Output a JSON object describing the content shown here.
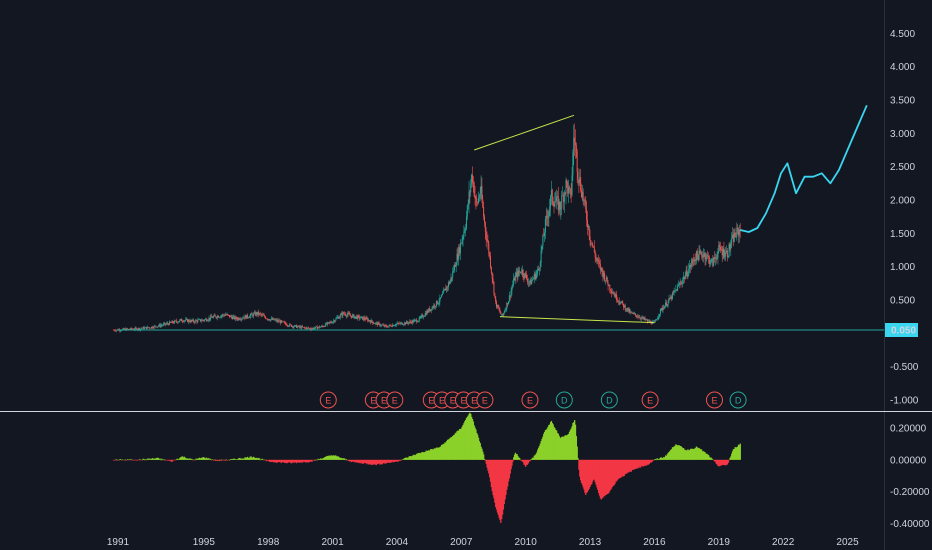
{
  "chart_data": {
    "type": "line",
    "colors": {
      "background": "#131722",
      "candle_up": "#26a69a",
      "candle_down": "#ef5350",
      "projection": "#3ad6f0",
      "trendline": "#c8e64a",
      "hline": "#26a69a",
      "price_label_bg": "#3ad6f0",
      "hist_pos": "#8bd12a",
      "hist_neg": "#f23645",
      "earnings": "#ef5350",
      "dividend": "#26a69a",
      "axis_text": "#d1d4dc",
      "separator": "#d1d4dc"
    },
    "x_ticks": [
      "1991",
      "1995",
      "1998",
      "2001",
      "2004",
      "2007",
      "2010",
      "2013",
      "2016",
      "2019",
      "2022",
      "2025"
    ],
    "x_tick_years": [
      1991,
      1995,
      1998,
      2001,
      2004,
      2007,
      2010,
      2013,
      2016,
      2019,
      2022,
      2025
    ],
    "xlim": [
      1991.0,
      2026.7
    ],
    "main": {
      "y_ticks": [
        "4.500",
        "4.000",
        "3.500",
        "3.000",
        "2.500",
        "2.000",
        "1.500",
        "1.000",
        "0.500",
        "-0.500",
        "-1.000"
      ],
      "y_tick_values": [
        4.5,
        4.0,
        3.5,
        3.0,
        2.5,
        2.0,
        1.5,
        1.0,
        0.5,
        -0.5,
        -1.0
      ],
      "ylim": [
        -1.15,
        5.0
      ],
      "price_path": [
        [
          1990.8,
          0.05
        ],
        [
          1991.5,
          0.06
        ],
        [
          1992.0,
          0.07
        ],
        [
          1992.5,
          0.09
        ],
        [
          1993.0,
          0.12
        ],
        [
          1993.5,
          0.16
        ],
        [
          1994.0,
          0.2
        ],
        [
          1994.5,
          0.18
        ],
        [
          1995.0,
          0.2
        ],
        [
          1995.5,
          0.25
        ],
        [
          1996.0,
          0.28
        ],
        [
          1996.5,
          0.22
        ],
        [
          1997.0,
          0.25
        ],
        [
          1997.5,
          0.3
        ],
        [
          1998.0,
          0.22
        ],
        [
          1998.5,
          0.18
        ],
        [
          1999.0,
          0.12
        ],
        [
          1999.5,
          0.09
        ],
        [
          2000.0,
          0.07
        ],
        [
          2000.5,
          0.1
        ],
        [
          2001.0,
          0.18
        ],
        [
          2001.5,
          0.3
        ],
        [
          2002.0,
          0.25
        ],
        [
          2002.5,
          0.22
        ],
        [
          2003.0,
          0.15
        ],
        [
          2003.5,
          0.1
        ],
        [
          2004.0,
          0.14
        ],
        [
          2004.5,
          0.16
        ],
        [
          2005.0,
          0.2
        ],
        [
          2005.5,
          0.35
        ],
        [
          2006.0,
          0.5
        ],
        [
          2006.5,
          0.8
        ],
        [
          2006.9,
          1.25
        ],
        [
          2007.2,
          1.65
        ],
        [
          2007.5,
          2.4
        ],
        [
          2007.7,
          1.9
        ],
        [
          2007.9,
          2.15
        ],
        [
          2008.1,
          1.6
        ],
        [
          2008.3,
          1.2
        ],
        [
          2008.6,
          0.45
        ],
        [
          2008.9,
          0.25
        ],
        [
          2009.2,
          0.5
        ],
        [
          2009.5,
          0.85
        ],
        [
          2009.8,
          0.95
        ],
        [
          2010.2,
          0.75
        ],
        [
          2010.6,
          0.95
        ],
        [
          2010.9,
          1.6
        ],
        [
          2011.2,
          2.05
        ],
        [
          2011.6,
          1.9
        ],
        [
          2011.9,
          2.25
        ],
        [
          2012.1,
          2.0
        ],
        [
          2012.25,
          3.0
        ],
        [
          2012.45,
          2.4
        ],
        [
          2012.7,
          2.0
        ],
        [
          2013.0,
          1.45
        ],
        [
          2013.3,
          1.1
        ],
        [
          2013.6,
          0.9
        ],
        [
          2013.9,
          0.7
        ],
        [
          2014.2,
          0.55
        ],
        [
          2014.6,
          0.4
        ],
        [
          2014.9,
          0.3
        ],
        [
          2015.3,
          0.25
        ],
        [
          2015.7,
          0.18
        ],
        [
          2016.0,
          0.15
        ],
        [
          2016.3,
          0.35
        ],
        [
          2016.7,
          0.5
        ],
        [
          2017.1,
          0.7
        ],
        [
          2017.5,
          0.9
        ],
        [
          2017.9,
          1.15
        ],
        [
          2018.3,
          1.2
        ],
        [
          2018.7,
          1.05
        ],
        [
          2019.0,
          1.25
        ],
        [
          2019.4,
          1.2
        ],
        [
          2019.7,
          1.45
        ],
        [
          2020.0,
          1.55
        ]
      ],
      "projection_path": [
        [
          2020.0,
          1.55
        ],
        [
          2020.4,
          1.52
        ],
        [
          2020.8,
          1.58
        ],
        [
          2021.2,
          1.8
        ],
        [
          2021.6,
          2.1
        ],
        [
          2021.9,
          2.4
        ],
        [
          2022.2,
          2.55
        ],
        [
          2022.6,
          2.1
        ],
        [
          2023.0,
          2.35
        ],
        [
          2023.4,
          2.35
        ],
        [
          2023.8,
          2.4
        ],
        [
          2024.2,
          2.25
        ],
        [
          2024.6,
          2.45
        ],
        [
          2025.0,
          2.75
        ],
        [
          2025.4,
          3.05
        ],
        [
          2025.9,
          3.42
        ]
      ],
      "trendlines": [
        {
          "from": [
            2007.6,
            2.75
          ],
          "to": [
            2012.25,
            3.27
          ]
        },
        {
          "from": [
            2008.8,
            0.25
          ],
          "to": [
            2016.0,
            0.16
          ]
        }
      ],
      "hline": {
        "value": 0.05,
        "label": "0.050"
      }
    },
    "events": [
      {
        "type": "E",
        "year": 2000.8
      },
      {
        "type": "E",
        "year": 2002.9
      },
      {
        "type": "E",
        "year": 2003.4
      },
      {
        "type": "E",
        "year": 2003.9
      },
      {
        "type": "E",
        "year": 2005.6
      },
      {
        "type": "E",
        "year": 2006.1
      },
      {
        "type": "E",
        "year": 2006.6
      },
      {
        "type": "E",
        "year": 2007.1
      },
      {
        "type": "E",
        "year": 2007.6
      },
      {
        "type": "E",
        "year": 2008.1
      },
      {
        "type": "E",
        "year": 2010.2
      },
      {
        "type": "D",
        "year": 2011.8
      },
      {
        "type": "D",
        "year": 2013.9
      },
      {
        "type": "E",
        "year": 2015.8
      },
      {
        "type": "E",
        "year": 2018.8
      },
      {
        "type": "D",
        "year": 2019.9
      }
    ],
    "oscillator": {
      "type": "area",
      "y_ticks": [
        "0.20000",
        "0.00000",
        "-0.20000",
        "-0.40000"
      ],
      "y_tick_values": [
        0.2,
        0.0,
        -0.2,
        -0.4
      ],
      "ylim": [
        -0.44,
        0.3
      ],
      "values": [
        [
          1990.8,
          0.0
        ],
        [
          1992.0,
          0.0
        ],
        [
          1992.8,
          0.01
        ],
        [
          1993.5,
          -0.01
        ],
        [
          1994.0,
          0.02
        ],
        [
          1994.5,
          0.0
        ],
        [
          1995.0,
          0.015
        ],
        [
          1995.6,
          -0.005
        ],
        [
          1996.2,
          0.0
        ],
        [
          1997.3,
          0.02
        ],
        [
          1998.0,
          -0.01
        ],
        [
          1999.0,
          -0.02
        ],
        [
          2000.0,
          -0.01
        ],
        [
          2001.0,
          0.03
        ],
        [
          2002.0,
          -0.015
        ],
        [
          2003.0,
          -0.03
        ],
        [
          2004.0,
          -0.01
        ],
        [
          2005.0,
          0.04
        ],
        [
          2006.0,
          0.08
        ],
        [
          2006.6,
          0.15
        ],
        [
          2007.0,
          0.2
        ],
        [
          2007.4,
          0.3
        ],
        [
          2007.7,
          0.18
        ],
        [
          2008.0,
          0.05
        ],
        [
          2008.3,
          -0.1
        ],
        [
          2008.6,
          -0.3
        ],
        [
          2008.85,
          -0.4
        ],
        [
          2009.1,
          -0.2
        ],
        [
          2009.5,
          0.05
        ],
        [
          2010.0,
          -0.04
        ],
        [
          2010.5,
          0.04
        ],
        [
          2010.9,
          0.18
        ],
        [
          2011.2,
          0.24
        ],
        [
          2011.6,
          0.14
        ],
        [
          2012.0,
          0.16
        ],
        [
          2012.3,
          0.26
        ],
        [
          2012.5,
          -0.1
        ],
        [
          2012.8,
          -0.22
        ],
        [
          2013.2,
          -0.12
        ],
        [
          2013.5,
          -0.25
        ],
        [
          2013.9,
          -0.2
        ],
        [
          2014.3,
          -0.12
        ],
        [
          2014.8,
          -0.08
        ],
        [
          2015.2,
          -0.05
        ],
        [
          2015.7,
          -0.03
        ],
        [
          2016.0,
          0.0
        ],
        [
          2016.5,
          0.02
        ],
        [
          2017.0,
          0.1
        ],
        [
          2017.5,
          0.06
        ],
        [
          2018.0,
          0.08
        ],
        [
          2018.5,
          0.03
        ],
        [
          2019.0,
          -0.04
        ],
        [
          2019.4,
          -0.03
        ],
        [
          2019.7,
          0.07
        ],
        [
          2020.0,
          0.1
        ]
      ]
    }
  }
}
